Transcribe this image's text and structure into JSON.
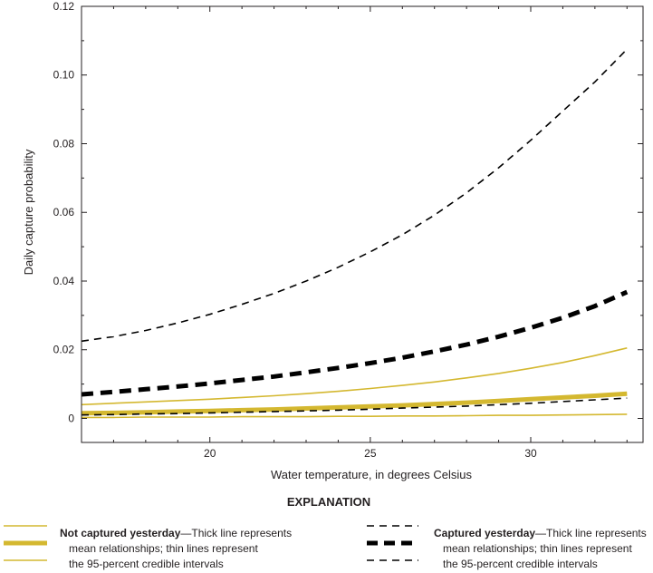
{
  "chart_data": {
    "type": "line",
    "xlabel": "Water temperature, in degrees Celsius",
    "ylabel": "Daily capture probability",
    "xlim": [
      16,
      33.5
    ],
    "ylim": [
      -0.007,
      0.12
    ],
    "x_ticks": [
      20,
      25,
      30
    ],
    "x_tick_labels": [
      "20",
      "25",
      "30"
    ],
    "y_ticks": [
      0,
      0.02,
      0.04,
      0.06,
      0.08,
      0.1,
      0.12
    ],
    "y_tick_labels": [
      "0",
      "0.02",
      "0.04",
      "0.06",
      "0.08",
      "0.10",
      "0.12"
    ],
    "grid": false,
    "x": [
      16,
      17,
      18,
      19,
      20,
      21,
      22,
      23,
      24,
      25,
      26,
      27,
      28,
      29,
      30,
      31,
      32,
      33
    ],
    "series": [
      {
        "name": "Not captured yesterday",
        "role": "mean",
        "color": "#d4b830",
        "style": "solid-thick",
        "values": [
          0.0015,
          0.0016,
          0.0018,
          0.002,
          0.0022,
          0.0024,
          0.0026,
          0.0029,
          0.0032,
          0.0035,
          0.0038,
          0.0042,
          0.0046,
          0.0051,
          0.0056,
          0.0061,
          0.0066,
          0.0072
        ]
      },
      {
        "name": "Not captured yesterday",
        "role": "upper 95-percent credible interval",
        "color": "#d4b830",
        "style": "solid-thin",
        "values": [
          0.004,
          0.0044,
          0.0048,
          0.0052,
          0.0056,
          0.0061,
          0.0066,
          0.0072,
          0.0079,
          0.0087,
          0.0096,
          0.0106,
          0.0118,
          0.0131,
          0.0146,
          0.0163,
          0.0183,
          0.0205
        ]
      },
      {
        "name": "Not captured yesterday",
        "role": "lower 95-percent credible interval",
        "color": "#d4b830",
        "style": "solid-thin",
        "values": [
          0.0003,
          0.0003,
          0.0004,
          0.0004,
          0.0004,
          0.0005,
          0.0005,
          0.0005,
          0.0006,
          0.0006,
          0.0007,
          0.0007,
          0.0008,
          0.0009,
          0.0009,
          0.001,
          0.0011,
          0.0012
        ]
      },
      {
        "name": "Captured yesterday",
        "role": "mean",
        "color": "#000000",
        "style": "dashed-thick",
        "values": [
          0.007,
          0.0077,
          0.0085,
          0.0093,
          0.0102,
          0.0112,
          0.0122,
          0.0134,
          0.0147,
          0.0161,
          0.0177,
          0.0195,
          0.0215,
          0.0238,
          0.0264,
          0.0293,
          0.0327,
          0.0368
        ]
      },
      {
        "name": "Captured yesterday",
        "role": "upper 95-percent credible interval",
        "color": "#000000",
        "style": "dashed-thin",
        "values": [
          0.0225,
          0.0238,
          0.0256,
          0.0278,
          0.0303,
          0.0332,
          0.0364,
          0.04,
          0.044,
          0.0485,
          0.0535,
          0.0592,
          0.0657,
          0.073,
          0.081,
          0.0895,
          0.098,
          0.1075
        ]
      },
      {
        "name": "Captured yesterday",
        "role": "lower 95-percent credible interval",
        "color": "#000000",
        "style": "dashed-thin",
        "values": [
          0.001,
          0.0011,
          0.0013,
          0.0014,
          0.0016,
          0.0018,
          0.002,
          0.0022,
          0.0024,
          0.0027,
          0.003,
          0.0033,
          0.0036,
          0.004,
          0.0044,
          0.0049,
          0.0054,
          0.0059
        ]
      }
    ]
  },
  "legend": {
    "heading": "EXPLANATION",
    "not_captured": {
      "bold": "Not captured yesterday",
      "line1_rest": "—Thick line represents",
      "line2": "mean relationships; thin lines represent",
      "line3": "the 95-percent credible intervals"
    },
    "captured": {
      "bold": "Captured yesterday",
      "line1_rest": "—Thick line represents",
      "line2": "mean relationships; thin lines represent",
      "line3": "the 95-percent credible intervals"
    }
  }
}
